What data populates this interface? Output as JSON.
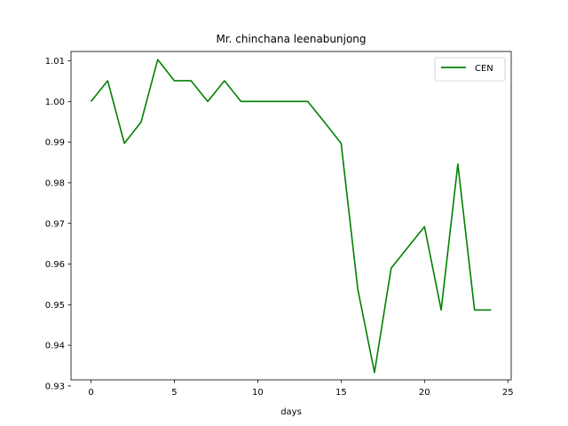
{
  "chart_data": {
    "type": "line",
    "title": "Mr. chinchana leenabunjong",
    "xlabel": "days",
    "ylabel": "",
    "xlim": [
      -1.2,
      25.2
    ],
    "ylim": [
      0.9315,
      1.0123
    ],
    "xticks": [
      0,
      5,
      10,
      15,
      20,
      25
    ],
    "yticks": [
      0.93,
      0.94,
      0.95,
      0.96,
      0.97,
      0.98,
      0.99,
      1.0,
      1.01
    ],
    "ytick_labels": [
      "0.93",
      "0.94",
      "0.95",
      "0.96",
      "0.97",
      "0.98",
      "0.99",
      "1.00",
      "1.01"
    ],
    "grid": false,
    "legend_position": "top-right",
    "series": [
      {
        "name": "CEN",
        "color": "#008000",
        "x": [
          0,
          1,
          2,
          3,
          4,
          5,
          6,
          7,
          8,
          9,
          10,
          11,
          12,
          13,
          14,
          15,
          16,
          17,
          18,
          19,
          20,
          21,
          22,
          23,
          24
        ],
        "y": [
          1.0,
          1.0051,
          0.9897,
          0.9949,
          1.0103,
          1.0051,
          1.0051,
          1.0,
          1.0051,
          1.0,
          1.0,
          1.0,
          1.0,
          1.0,
          0.9949,
          0.9897,
          0.9538,
          0.9333,
          0.959,
          0.9641,
          0.9692,
          0.9487,
          0.9846,
          0.9487,
          0.9487
        ]
      }
    ]
  }
}
